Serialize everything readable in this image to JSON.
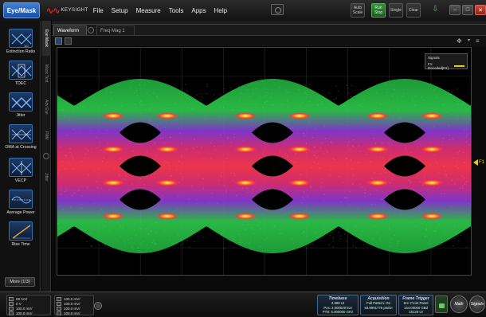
{
  "menubar": {
    "mode_button": "Eye/Mask",
    "brand": "KEYSIGHT",
    "menu": [
      "File",
      "Setup",
      "Measure",
      "Tools",
      "Apps",
      "Help"
    ],
    "buttons": {
      "auto_scale": "Auto Scale",
      "run_stop": "Run Stop",
      "single": "Single",
      "clear": "Clear"
    }
  },
  "sidebar": {
    "items": [
      {
        "label": "Extinction Ratio",
        "icon": "extinction-ratio-icon"
      },
      {
        "label": "TDEC",
        "icon": "tdec-icon"
      },
      {
        "label": "Jitter",
        "icon": "jitter-icon"
      },
      {
        "label": "OMA at Crossing",
        "icon": "oma-crossing-icon"
      },
      {
        "label": "VECP",
        "icon": "vecp-icon"
      },
      {
        "label": "Average Power",
        "icon": "average-power-icon"
      },
      {
        "label": "Rise Time",
        "icon": "rise-time-icon"
      }
    ],
    "more": "More (1/3)"
  },
  "vtabs": [
    "Eye Mask",
    "Mask Test",
    "Adv Eye",
    "PAM",
    "Jitter"
  ],
  "tabs": {
    "active": "Waveform",
    "inactive": "Freq Mag 1"
  },
  "plot": {
    "legend_title": "Signals",
    "legend_signal": "F1: Decoded[F2]",
    "marker": "F1",
    "trace_color": "#e6d000"
  },
  "status": {
    "channels_left": [
      "68 mV/",
      "0 V",
      "100.0 mV/",
      "100.0 mV/"
    ],
    "channels_mid": [
      "100.0 mV/",
      "100.0 mV/",
      "100.0 mV/",
      "100.0 mV/"
    ],
    "timebase": {
      "title": "Timebase",
      "lines": [
        "3.888 UI",
        "Pos: 2.000029 kUI",
        "PTB: 5.000000 GHz"
      ]
    },
    "acquisition": {
      "title": "Acquisition",
      "lines": [
        "Full Pattern: On",
        "63.9991776 pts/UI"
      ]
    },
    "trigger": {
      "title": "Frame Trigger",
      "lines": [
        "Src: Front Panel",
        "144.00000 GBd",
        "16128 UI"
      ]
    },
    "math": "Math",
    "signals": "Signals"
  }
}
